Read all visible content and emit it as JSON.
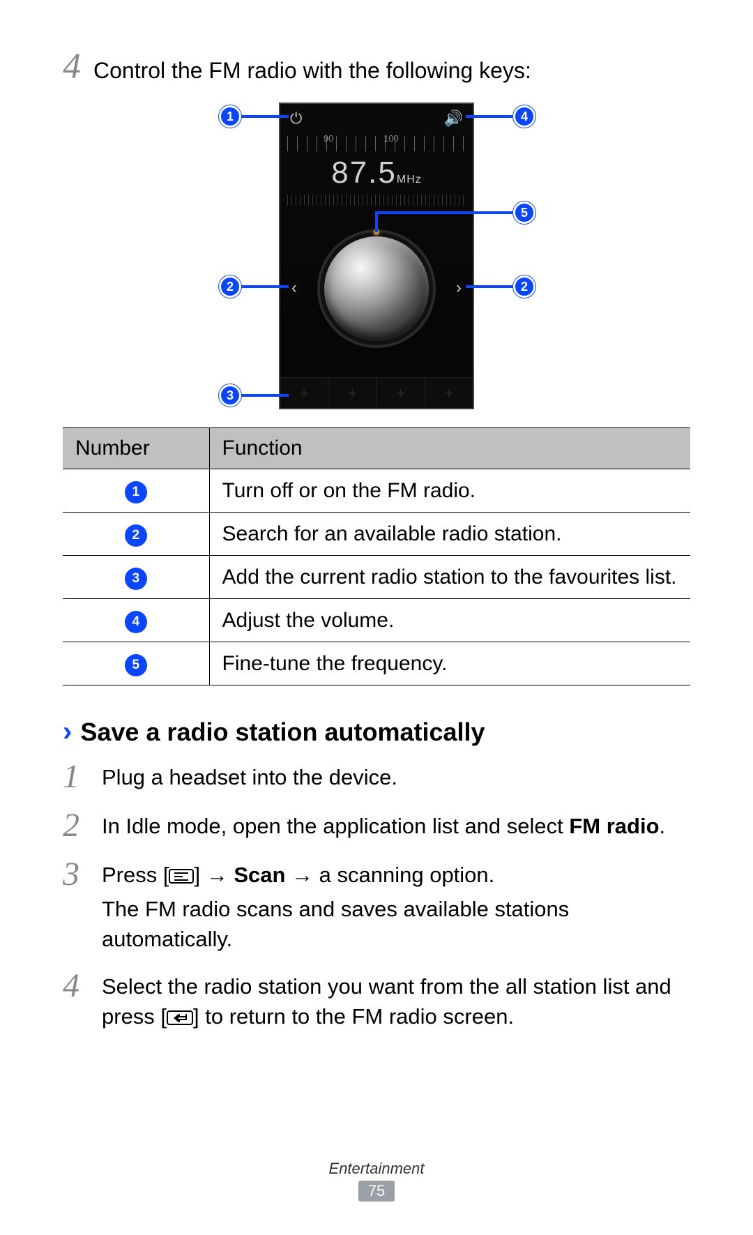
{
  "intro": {
    "step_num": "4",
    "text": "Control the FM radio with the following keys:"
  },
  "radio": {
    "ruler_labels": {
      "a": "90",
      "b": "100"
    },
    "frequency_value": "87.5",
    "frequency_unit": "MHz"
  },
  "callouts": {
    "1": "1",
    "2": "2",
    "3": "3",
    "4": "4",
    "5": "5"
  },
  "table": {
    "headers": {
      "number": "Number",
      "function": "Function"
    },
    "rows": [
      {
        "badge": "1",
        "text": "Turn off or on the FM radio."
      },
      {
        "badge": "2",
        "text": "Search for an available radio station."
      },
      {
        "badge": "3",
        "text": "Add the current radio station to the favourites list."
      },
      {
        "badge": "4",
        "text": "Adjust the volume."
      },
      {
        "badge": "5",
        "text": "Fine-tune the frequency."
      }
    ]
  },
  "section": {
    "chevron": "›",
    "title": "Save a radio station automatically"
  },
  "steps": [
    {
      "n": "1",
      "parts": [
        {
          "t": "Plug a headset into the device."
        }
      ]
    },
    {
      "n": "2",
      "parts": [
        {
          "t": "In Idle mode, open the application list and select "
        },
        {
          "t": "FM radio",
          "bold": true
        },
        {
          "t": "."
        }
      ]
    },
    {
      "n": "3",
      "parts": [
        {
          "t": "Press ["
        },
        {
          "icon": "menu"
        },
        {
          "t": "] → "
        },
        {
          "t": "Scan",
          "bold": true
        },
        {
          "t": " → a scanning option."
        }
      ],
      "sub": "The FM radio scans and saves available stations automatically."
    },
    {
      "n": "4",
      "parts": [
        {
          "t": "Select the radio station you want from the all station list and press ["
        },
        {
          "icon": "back"
        },
        {
          "t": "] to return to the FM radio screen."
        }
      ]
    }
  ],
  "footer": {
    "category": "Entertainment",
    "page": "75"
  },
  "colors": {
    "accent": "#0a46ff"
  }
}
